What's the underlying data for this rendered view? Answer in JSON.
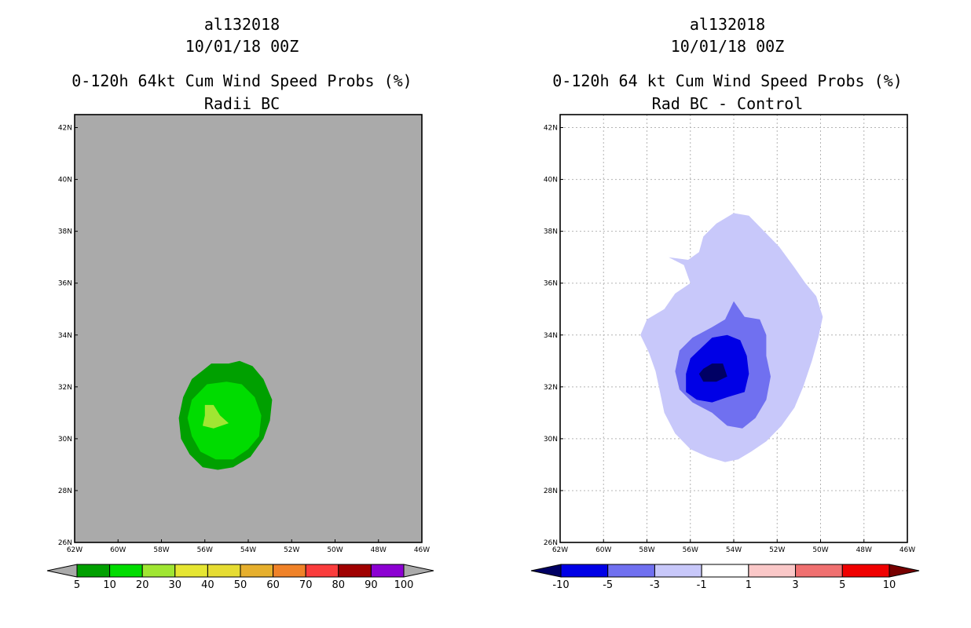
{
  "chart_data": [
    {
      "type": "heatmap",
      "storm_id": "al132018",
      "date": "10/01/18 00Z",
      "title": "0-120h 64kt Cum Wind Speed Probs (%)",
      "subtitle": "Radii BC",
      "x_tick_labels": [
        "62W",
        "60W",
        "58W",
        "56W",
        "54W",
        "52W",
        "50W",
        "48W",
        "46W"
      ],
      "y_tick_labels": [
        "26N",
        "28N",
        "30N",
        "32N",
        "34N",
        "36N",
        "38N",
        "40N",
        "42N"
      ],
      "xlim": [
        -62,
        -46
      ],
      "ylim": [
        26,
        42.5
      ],
      "grid": false,
      "background_color": "#aaaaaa",
      "colorbar": {
        "labels": [
          "5",
          "10",
          "20",
          "30",
          "40",
          "50",
          "60",
          "70",
          "80",
          "90",
          "100"
        ],
        "colors": [
          "#00a000",
          "#00dc00",
          "#a0e632",
          "#e6e632",
          "#e6dc32",
          "#e6af2d",
          "#f08228",
          "#fa3c3c",
          "#a00000",
          "#8c00d2"
        ],
        "under_color": "#aaaaaa",
        "over_color": "#aaaaaa"
      },
      "contours": [
        {
          "level": "5-10",
          "color": "#00a000",
          "points": [
            [
              -55.7,
              32.9
            ],
            [
              -54.9,
              32.9
            ],
            [
              -54.4,
              33.0
            ],
            [
              -53.8,
              32.8
            ],
            [
              -53.3,
              32.3
            ],
            [
              -52.9,
              31.5
            ],
            [
              -53.0,
              30.7
            ],
            [
              -53.3,
              30.0
            ],
            [
              -53.9,
              29.3
            ],
            [
              -54.7,
              28.9
            ],
            [
              -55.4,
              28.8
            ],
            [
              -56.1,
              28.9
            ],
            [
              -56.7,
              29.4
            ],
            [
              -57.1,
              30.0
            ],
            [
              -57.2,
              30.8
            ],
            [
              -57.0,
              31.6
            ],
            [
              -56.6,
              32.3
            ]
          ]
        },
        {
          "level": "10-20",
          "color": "#00dc00",
          "points": [
            [
              -55.9,
              32.1
            ],
            [
              -55.0,
              32.2
            ],
            [
              -54.3,
              32.1
            ],
            [
              -53.7,
              31.6
            ],
            [
              -53.4,
              30.9
            ],
            [
              -53.5,
              30.1
            ],
            [
              -54.0,
              29.6
            ],
            [
              -54.7,
              29.2
            ],
            [
              -55.5,
              29.2
            ],
            [
              -56.2,
              29.5
            ],
            [
              -56.6,
              30.1
            ],
            [
              -56.8,
              30.8
            ],
            [
              -56.6,
              31.5
            ]
          ]
        },
        {
          "level": "20-30",
          "color": "#a0e632",
          "points": [
            [
              -56.0,
              31.3
            ],
            [
              -55.6,
              31.3
            ],
            [
              -55.3,
              30.9
            ],
            [
              -54.9,
              30.6
            ],
            [
              -55.6,
              30.4
            ],
            [
              -56.1,
              30.5
            ],
            [
              -56.0,
              30.9
            ]
          ]
        }
      ]
    },
    {
      "type": "heatmap",
      "storm_id": "al132018",
      "date": "10/01/18 00Z",
      "title": "0-120h 64 kt Cum Wind Speed Probs (%)",
      "subtitle": "Rad BC - Control",
      "x_tick_labels": [
        "62W",
        "60W",
        "58W",
        "56W",
        "54W",
        "52W",
        "50W",
        "48W",
        "46W"
      ],
      "y_tick_labels": [
        "26N",
        "28N",
        "30N",
        "32N",
        "34N",
        "36N",
        "38N",
        "40N",
        "42N"
      ],
      "xlim": [
        -62,
        -46
      ],
      "ylim": [
        26,
        42.5
      ],
      "grid": true,
      "background_color": "#ffffff",
      "colorbar": {
        "labels": [
          "-10",
          "-5",
          "-3",
          "-1",
          "1",
          "3",
          "5",
          "10"
        ],
        "colors": [
          "#0000e6",
          "#7070f0",
          "#c8c8fa",
          "#ffffff",
          "#fac8c8",
          "#f07070",
          "#f00000"
        ],
        "under_color": "#000064",
        "over_color": "#780000"
      },
      "contours": [
        {
          "level": "-3 to -1",
          "color": "#c8c8fa",
          "points": [
            [
              -54.8,
              38.3
            ],
            [
              -54.0,
              38.7
            ],
            [
              -53.3,
              38.6
            ],
            [
              -52.6,
              38.0
            ],
            [
              -51.9,
              37.4
            ],
            [
              -51.2,
              36.6
            ],
            [
              -50.7,
              36.0
            ],
            [
              -50.2,
              35.5
            ],
            [
              -49.9,
              34.7
            ],
            [
              -50.1,
              33.9
            ],
            [
              -50.4,
              33.0
            ],
            [
              -50.8,
              32.0
            ],
            [
              -51.2,
              31.2
            ],
            [
              -51.8,
              30.5
            ],
            [
              -52.5,
              29.9
            ],
            [
              -53.2,
              29.5
            ],
            [
              -53.8,
              29.2
            ],
            [
              -54.4,
              29.1
            ],
            [
              -55.2,
              29.3
            ],
            [
              -56.0,
              29.6
            ],
            [
              -56.7,
              30.2
            ],
            [
              -57.2,
              31.0
            ],
            [
              -57.4,
              31.8
            ],
            [
              -57.6,
              32.6
            ],
            [
              -57.9,
              33.3
            ],
            [
              -58.3,
              34.0
            ],
            [
              -58.0,
              34.6
            ],
            [
              -57.2,
              35.0
            ],
            [
              -56.7,
              35.6
            ],
            [
              -56.0,
              36.0
            ],
            [
              -56.3,
              36.7
            ],
            [
              -57.0,
              37.0
            ],
            [
              -56.1,
              36.9
            ],
            [
              -55.6,
              37.2
            ],
            [
              -55.4,
              37.8
            ]
          ]
        },
        {
          "level": "-5 to -3",
          "color": "#7070f0",
          "points": [
            [
              -54.0,
              35.3
            ],
            [
              -53.5,
              34.7
            ],
            [
              -52.8,
              34.6
            ],
            [
              -52.5,
              34.0
            ],
            [
              -52.5,
              33.2
            ],
            [
              -52.3,
              32.4
            ],
            [
              -52.5,
              31.5
            ],
            [
              -53.0,
              30.8
            ],
            [
              -53.6,
              30.4
            ],
            [
              -54.3,
              30.5
            ],
            [
              -55.0,
              31.0
            ],
            [
              -55.9,
              31.4
            ],
            [
              -56.5,
              31.9
            ],
            [
              -56.7,
              32.6
            ],
            [
              -56.5,
              33.4
            ],
            [
              -55.9,
              33.9
            ],
            [
              -55.0,
              34.3
            ],
            [
              -54.4,
              34.6
            ]
          ]
        },
        {
          "level": "-10 to -5",
          "color": "#0000e6",
          "points": [
            [
              -55.0,
              33.9
            ],
            [
              -54.3,
              34.0
            ],
            [
              -53.7,
              33.8
            ],
            [
              -53.4,
              33.2
            ],
            [
              -53.3,
              32.5
            ],
            [
              -53.5,
              31.8
            ],
            [
              -54.3,
              31.6
            ],
            [
              -55.0,
              31.4
            ],
            [
              -55.7,
              31.5
            ],
            [
              -56.2,
              31.8
            ],
            [
              -56.2,
              32.5
            ],
            [
              -56.0,
              33.1
            ],
            [
              -55.5,
              33.5
            ]
          ]
        },
        {
          "level": "< -10",
          "color": "#000064",
          "points": [
            [
              -55.0,
              32.9
            ],
            [
              -54.5,
              32.9
            ],
            [
              -54.3,
              32.4
            ],
            [
              -54.8,
              32.2
            ],
            [
              -55.4,
              32.2
            ],
            [
              -55.6,
              32.5
            ],
            [
              -55.4,
              32.7
            ]
          ]
        }
      ]
    }
  ]
}
